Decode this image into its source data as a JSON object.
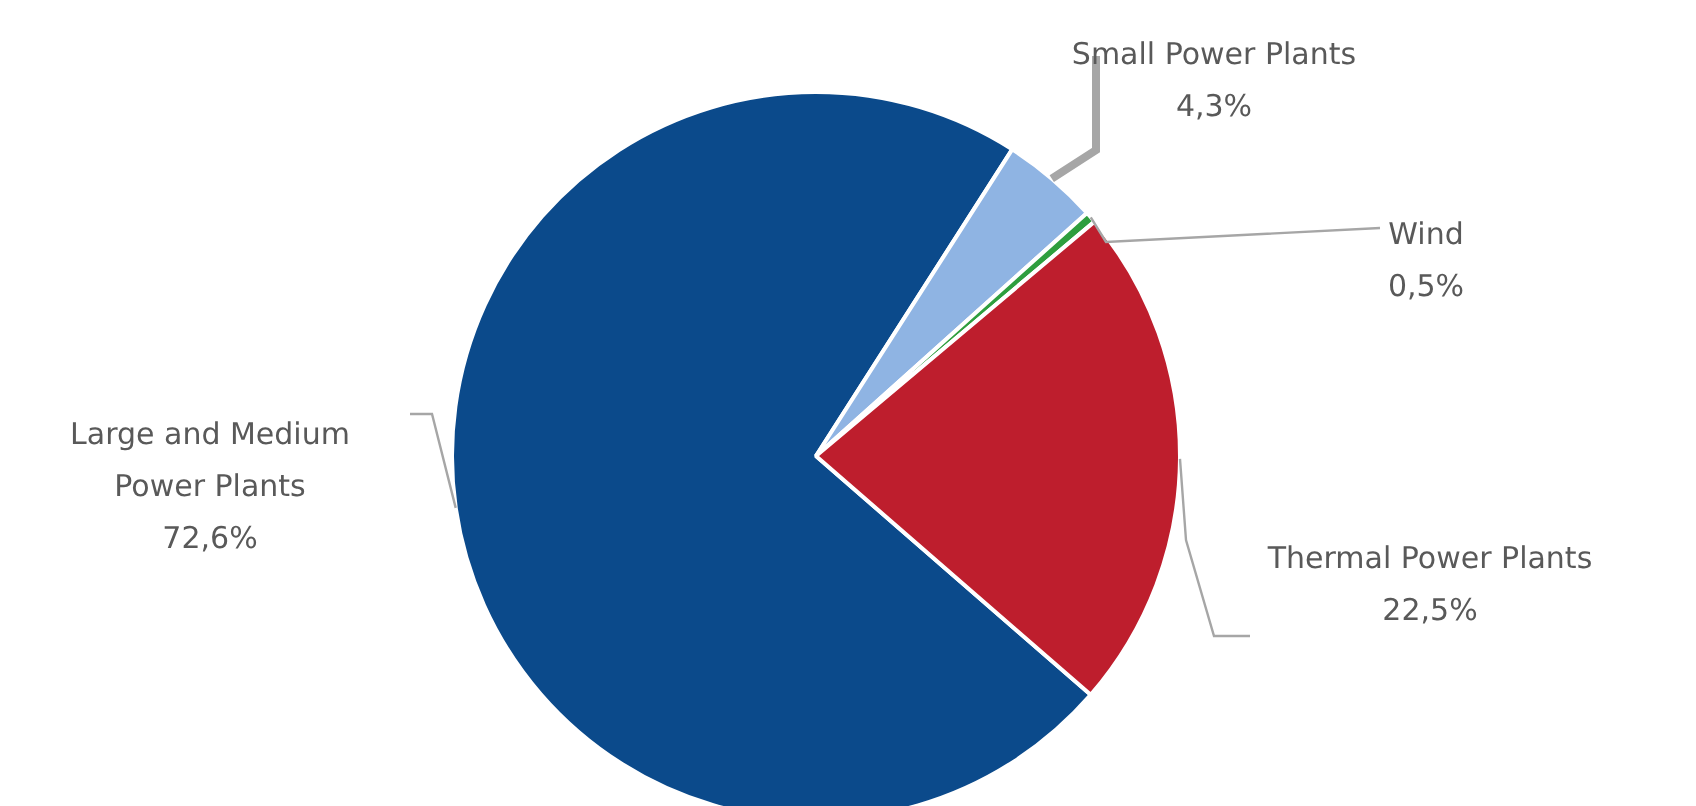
{
  "chart_data": {
    "type": "pie",
    "categories": [
      "Large and Medium Power Plants",
      "Small Power Plants",
      "Wind",
      "Thermal Power Plants"
    ],
    "values": [
      72.6,
      4.3,
      0.5,
      22.5
    ],
    "value_labels": [
      "72,6%",
      "4,3%",
      "0,5%",
      "22,5%"
    ],
    "colors": [
      "#0b4a8b",
      "#8fb4e3",
      "#2e9e3e",
      "#be1e2d"
    ],
    "legend": false
  }
}
